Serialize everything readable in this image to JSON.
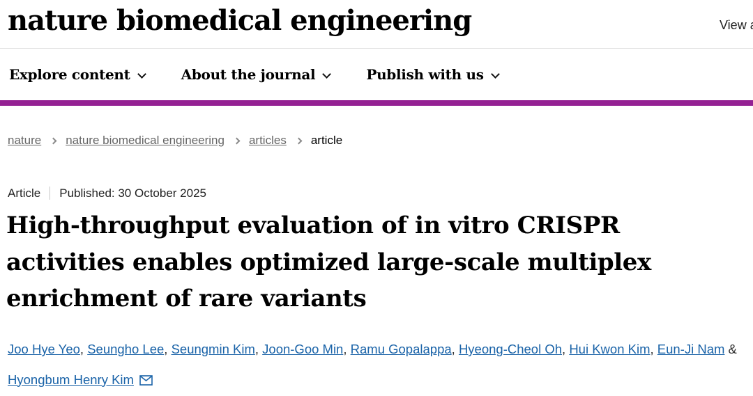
{
  "header": {
    "logo": "nature biomedical engineering",
    "view_all_label": "View a"
  },
  "nav": {
    "items": [
      {
        "label": "Explore content"
      },
      {
        "label": "About the journal"
      },
      {
        "label": "Publish with us"
      }
    ]
  },
  "breadcrumb": {
    "items": [
      {
        "label": "nature"
      },
      {
        "label": "nature biomedical engineering"
      },
      {
        "label": "articles"
      },
      {
        "label": "article"
      }
    ]
  },
  "article": {
    "type_label": "Article",
    "published": "Published: 30 October 2025",
    "title": "High-throughput evaluation of in vitro CRISPR activities enables optimized large-scale multiplex enrichment of rare variants",
    "authors": [
      "Joo Hye Yeo",
      "Seungho Lee",
      "Seungmin Kim",
      "Joon-Goo Min",
      "Ramu Gopalappa",
      "Hyeong-Cheol Oh",
      "Hui Kwon Kim",
      "Eun-Ji Nam",
      "Hyongbum Henry Kim"
    ],
    "author_separator": ", ",
    "author_last_separator": " & "
  },
  "colors": {
    "accent_purple": "#942193",
    "link_blue": "#1a63a8",
    "breadcrumb_gray": "#666666"
  }
}
